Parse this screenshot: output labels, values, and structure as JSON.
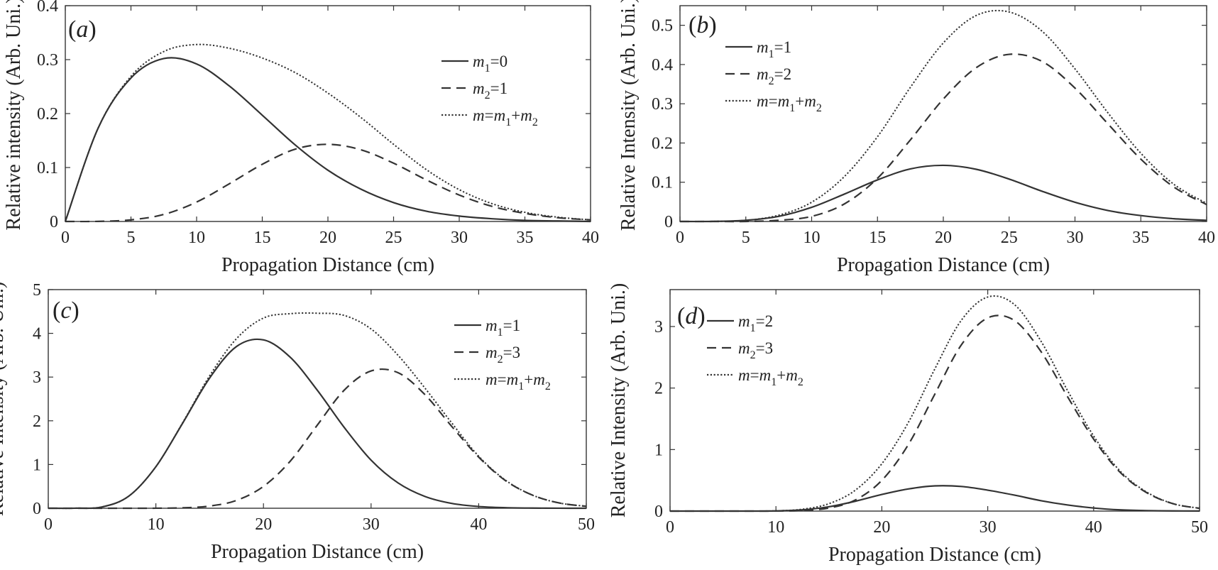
{
  "chart_data": [
    {
      "type": "line",
      "panel_label": "(a)",
      "xlabel": "Propagation Distance (cm)",
      "ylabel": "Relative intensity (Arb. Uni.)",
      "xlim": [
        0,
        40
      ],
      "ylim": [
        0,
        0.4
      ],
      "xticks": [
        "0",
        "5",
        "10",
        "15",
        "20",
        "25",
        "30",
        "35",
        "40"
      ],
      "yticks": [
        "0",
        "0.1",
        "0.2",
        "0.3",
        "0.4"
      ],
      "legend_position": "top-right",
      "x": [
        0,
        2.5,
        5,
        7.5,
        10,
        12.5,
        15,
        17.5,
        20,
        22.5,
        25,
        27.5,
        30,
        32.5,
        35,
        37.5,
        40
      ],
      "series": [
        {
          "name": "m1=0",
          "style": "solid",
          "values": [
            0,
            0.173,
            0.266,
            0.302,
            0.292,
            0.251,
            0.197,
            0.142,
            0.095,
            0.06,
            0.035,
            0.019,
            0.01,
            0.005,
            0.002,
            0.001,
            0.0
          ]
        },
        {
          "name": "m2=1",
          "style": "dashed",
          "values": [
            0,
            0.0002,
            0.003,
            0.013,
            0.036,
            0.07,
            0.106,
            0.134,
            0.143,
            0.133,
            0.108,
            0.077,
            0.049,
            0.028,
            0.015,
            0.007,
            0.003
          ]
        },
        {
          "name": "m=m1+m2",
          "style": "dotted",
          "values": [
            0,
            0.173,
            0.269,
            0.315,
            0.328,
            0.321,
            0.303,
            0.276,
            0.238,
            0.193,
            0.143,
            0.096,
            0.059,
            0.033,
            0.017,
            0.008,
            0.003
          ]
        }
      ]
    },
    {
      "type": "line",
      "panel_label": "(b)",
      "xlabel": "Propagation Distance (cm)",
      "ylabel": "Relative Intensity (Arb. Uni.)",
      "xlim": [
        0,
        40
      ],
      "ylim": [
        0,
        0.55
      ],
      "xticks": [
        "0",
        "5",
        "10",
        "15",
        "20",
        "25",
        "30",
        "35",
        "40"
      ],
      "yticks": [
        "0",
        "0.1",
        "0.2",
        "0.3",
        "0.4",
        "0.5"
      ],
      "legend_position": "top-left",
      "x": [
        0,
        2.5,
        5,
        7.5,
        10,
        12.5,
        15,
        17.5,
        20,
        22.5,
        25,
        27.5,
        30,
        32.5,
        35,
        37.5,
        40
      ],
      "series": [
        {
          "name": "m1=1",
          "style": "solid",
          "values": [
            0,
            0.0002,
            0.003,
            0.013,
            0.036,
            0.07,
            0.106,
            0.134,
            0.143,
            0.133,
            0.108,
            0.077,
            0.049,
            0.028,
            0.015,
            0.007,
            0.003
          ]
        },
        {
          "name": "m2=2",
          "style": "dashed",
          "values": [
            0,
            0,
            0,
            0.003,
            0.013,
            0.045,
            0.11,
            0.208,
            0.312,
            0.392,
            0.426,
            0.408,
            0.34,
            0.249,
            0.159,
            0.088,
            0.043
          ]
        },
        {
          "name": "m=m1+m2",
          "style": "dotted",
          "values": [
            0,
            0.0002,
            0.003,
            0.016,
            0.049,
            0.115,
            0.216,
            0.342,
            0.455,
            0.525,
            0.534,
            0.485,
            0.389,
            0.277,
            0.174,
            0.095,
            0.046
          ]
        }
      ]
    },
    {
      "type": "line",
      "panel_label": "(c)",
      "xlabel": "Propagation Distance (cm)",
      "ylabel": "Relative Intensity (Arb. Uni.)",
      "xlim": [
        0,
        50
      ],
      "ylim": [
        0,
        5
      ],
      "xticks": [
        "0",
        "10",
        "20",
        "30",
        "40",
        "50"
      ],
      "yticks": [
        "0",
        "1",
        "2",
        "3",
        "4",
        "5"
      ],
      "legend_position": "top-right",
      "x": [
        0,
        2.5,
        5,
        7.5,
        10,
        12.5,
        15,
        17.5,
        20,
        22.5,
        25,
        27.5,
        30,
        32.5,
        35,
        37.5,
        40,
        42.5,
        45,
        47.5,
        50
      ],
      "series": [
        {
          "name": "m1=1",
          "style": "solid",
          "values": [
            0,
            0.001,
            0.03,
            0.28,
            0.95,
            1.95,
            2.98,
            3.7,
            3.85,
            3.45,
            2.7,
            1.85,
            1.1,
            0.58,
            0.27,
            0.11,
            0.04,
            0.013,
            0.004,
            0.001,
            0.0003
          ]
        },
        {
          "name": "m2=3",
          "style": "dashed",
          "values": [
            0,
            0,
            0,
            0,
            0.001,
            0.01,
            0.05,
            0.18,
            0.5,
            1.08,
            1.9,
            2.7,
            3.14,
            3.1,
            2.6,
            1.87,
            1.17,
            0.63,
            0.3,
            0.12,
            0.045
          ]
        },
        {
          "name": "m=m1+m2",
          "style": "dotted",
          "values": [
            0,
            0.001,
            0.03,
            0.28,
            0.95,
            1.96,
            3.03,
            3.88,
            4.35,
            4.45,
            4.46,
            4.41,
            4.1,
            3.5,
            2.75,
            1.95,
            1.19,
            0.64,
            0.3,
            0.12,
            0.045
          ]
        }
      ]
    },
    {
      "type": "line",
      "panel_label": "(d)",
      "xlabel": "Propagation Distance (cm)",
      "ylabel": "Relative Intensity (Arb. Uni.)",
      "xlim": [
        0,
        50
      ],
      "ylim": [
        0,
        3.6
      ],
      "xticks": [
        "0",
        "10",
        "20",
        "30",
        "40",
        "50"
      ],
      "yticks": [
        "0",
        "1",
        "2",
        "3"
      ],
      "legend_position": "top-left",
      "x": [
        0,
        2.5,
        5,
        7.5,
        10,
        12.5,
        15,
        17.5,
        20,
        22.5,
        25,
        27.5,
        30,
        32.5,
        35,
        37.5,
        40,
        42.5,
        45,
        47.5,
        50
      ],
      "series": [
        {
          "name": "m1=2",
          "style": "solid",
          "values": [
            0,
            0,
            0,
            0,
            0.003,
            0.02,
            0.07,
            0.16,
            0.27,
            0.36,
            0.41,
            0.4,
            0.34,
            0.26,
            0.17,
            0.1,
            0.05,
            0.02,
            0.008,
            0.003,
            0.001
          ]
        },
        {
          "name": "m2=3",
          "style": "dashed",
          "values": [
            0,
            0,
            0,
            0,
            0.001,
            0.01,
            0.05,
            0.18,
            0.5,
            1.08,
            1.9,
            2.7,
            3.14,
            3.1,
            2.6,
            1.87,
            1.17,
            0.63,
            0.3,
            0.12,
            0.045
          ]
        },
        {
          "name": "m=m1+m2",
          "style": "dotted",
          "values": [
            0,
            0,
            0,
            0,
            0.004,
            0.03,
            0.12,
            0.34,
            0.77,
            1.44,
            2.31,
            3.1,
            3.48,
            3.36,
            2.77,
            1.97,
            1.22,
            0.65,
            0.31,
            0.12,
            0.046
          ]
        }
      ]
    }
  ]
}
